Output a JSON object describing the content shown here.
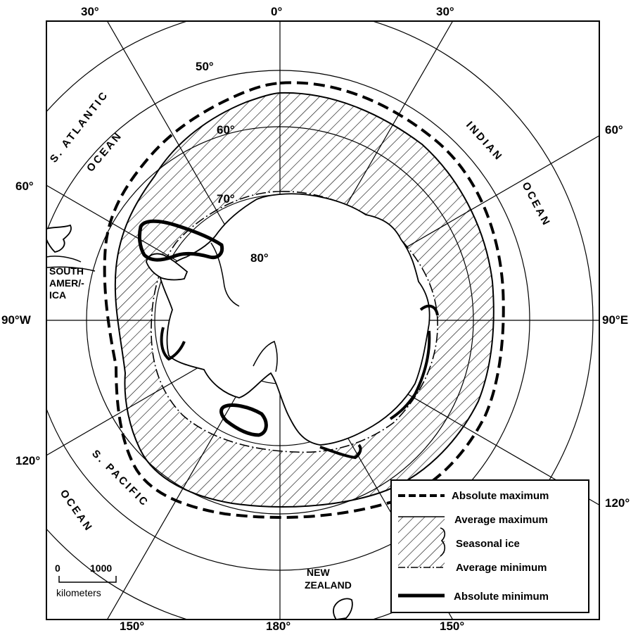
{
  "degree_labels": {
    "top_30w": "30°",
    "top_0": "0°",
    "top_30e": "30°",
    "left_60": "60°",
    "right_60": "60°",
    "left_90w": "90°W",
    "right_90e": "90°E",
    "left_120": "120°",
    "right_120": "120°",
    "bottom_150w": "150°",
    "bottom_180": "180°",
    "bottom_150e": "150°"
  },
  "latitude_labels": {
    "lat50": "50°",
    "lat60": "60°",
    "lat70": "70°",
    "lat80": "80°"
  },
  "oceans": {
    "s_atlantic": "S. ATLANTIC",
    "ocean_atlantic": "OCEAN",
    "indian": "INDIAN",
    "ocean_indian": "OCEAN",
    "s_pacific": "S. PACIFIC",
    "ocean_pacific": "OCEAN"
  },
  "places": {
    "south_america_1": "SOUTH",
    "south_america_2": "AMER/-",
    "south_america_3": "ICA",
    "new_zealand_1": "NEW",
    "new_zealand_2": "ZEALAND"
  },
  "scale": {
    "start": "0",
    "end": "1000",
    "unit": "kilometers"
  },
  "legend": {
    "absolute_maximum": "Absolute maximum",
    "average_maximum": "Average maximum",
    "seasonal_ice": "Seasonal ice",
    "average_minimum": "Average minimum",
    "absolute_minimum": "Absolute minimum"
  },
  "style": {
    "ink": "#000000",
    "paper": "#ffffff"
  }
}
